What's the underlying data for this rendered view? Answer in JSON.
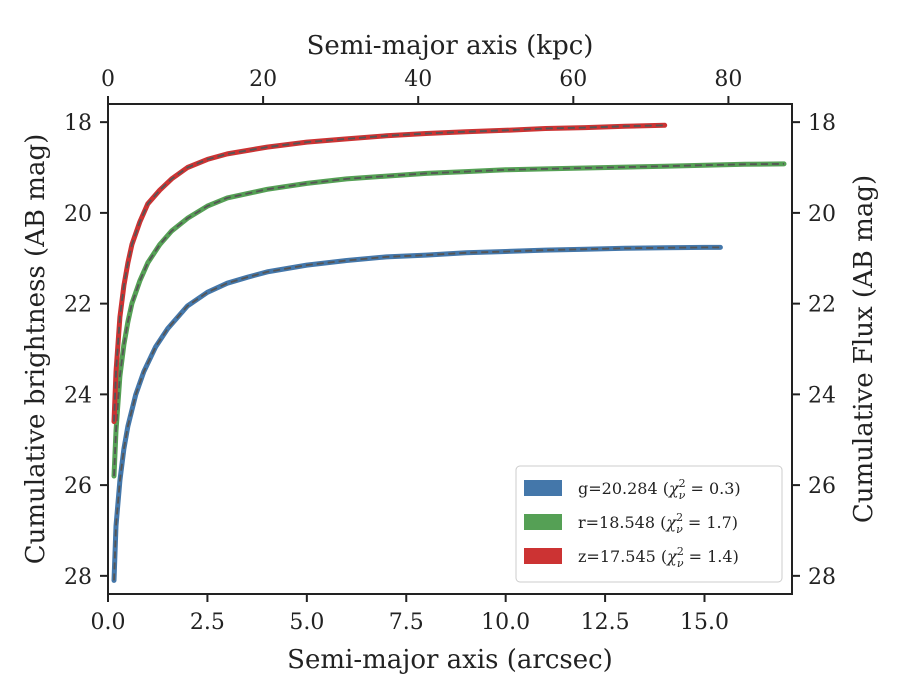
{
  "chart_data": {
    "type": "line",
    "xlabel": "Semi-major axis (arcsec)",
    "x2label": "Semi-major axis (kpc)",
    "ylabel": "Cumulative brightness (AB mag)",
    "y2label": "Cumulative Flux (AB mag)",
    "xlim": [
      0,
      17.2
    ],
    "x2lim": [
      0,
      88.2
    ],
    "ylim": [
      28.4,
      17.6
    ],
    "y_inverted": true,
    "x_ticks": [
      0.0,
      2.5,
      5.0,
      7.5,
      10.0,
      12.5,
      15.0
    ],
    "x_tick_labels": [
      "0.0",
      "2.5",
      "5.0",
      "7.5",
      "10.0",
      "12.5",
      "15.0"
    ],
    "x2_ticks": [
      0,
      20,
      40,
      60,
      80
    ],
    "x2_tick_labels": [
      "0",
      "20",
      "40",
      "60",
      "80"
    ],
    "y_ticks": [
      18,
      20,
      22,
      24,
      26,
      28
    ],
    "y_tick_labels": [
      "18",
      "20",
      "22",
      "24",
      "26",
      "28"
    ],
    "legend_position": "lower-right",
    "grid": false,
    "series": [
      {
        "name": "g=20.284 (χ²ν = 0.3)",
        "label_main": "g=20.284 (",
        "label_sym": "χ",
        "label_sup": "2",
        "label_sub": "ν",
        "label_tail": " = 0.3)",
        "color": "#4477aa",
        "x": [
          0.15,
          0.2,
          0.3,
          0.4,
          0.5,
          0.7,
          0.9,
          1.2,
          1.5,
          2.0,
          2.5,
          3.0,
          3.5,
          4.0,
          5.0,
          6.0,
          7.0,
          8.0,
          9.0,
          10.0,
          11.0,
          12.0,
          13.0,
          14.0,
          15.0,
          15.4
        ],
        "values": [
          28.1,
          26.9,
          25.9,
          25.2,
          24.7,
          24.0,
          23.5,
          22.95,
          22.55,
          22.05,
          21.75,
          21.55,
          21.42,
          21.3,
          21.15,
          21.05,
          20.97,
          20.93,
          20.88,
          20.85,
          20.82,
          20.8,
          20.78,
          20.77,
          20.76,
          20.76
        ]
      },
      {
        "name": "r=18.548 (χ²ν = 1.7)",
        "label_main": "r=18.548 (",
        "label_sym": "χ",
        "label_sup": "2",
        "label_sub": "ν",
        "label_tail": " = 1.7)",
        "color": "#55a055",
        "x": [
          0.15,
          0.2,
          0.3,
          0.4,
          0.5,
          0.6,
          0.8,
          1.0,
          1.3,
          1.6,
          2.0,
          2.5,
          3.0,
          4.0,
          5.0,
          6.0,
          7.0,
          8.0,
          9.0,
          10.0,
          11.0,
          12.0,
          13.0,
          14.0,
          15.0,
          16.0,
          17.0
        ],
        "values": [
          25.8,
          24.8,
          23.6,
          22.9,
          22.4,
          22.0,
          21.5,
          21.1,
          20.7,
          20.4,
          20.12,
          19.85,
          19.67,
          19.48,
          19.35,
          19.25,
          19.19,
          19.13,
          19.09,
          19.05,
          19.03,
          19.01,
          18.99,
          18.97,
          18.95,
          18.93,
          18.92
        ]
      },
      {
        "name": "z=17.545 (χ²ν = 1.4)",
        "label_main": "z=17.545 (",
        "label_sym": "χ",
        "label_sup": "2",
        "label_sub": "ν",
        "label_tail": " = 1.4)",
        "color": "#cc3333",
        "x": [
          0.15,
          0.2,
          0.3,
          0.4,
          0.5,
          0.6,
          0.8,
          1.0,
          1.3,
          1.6,
          2.0,
          2.5,
          3.0,
          4.0,
          5.0,
          6.0,
          7.0,
          8.0,
          9.0,
          10.0,
          11.0,
          12.0,
          13.0,
          14.0
        ],
        "values": [
          24.6,
          23.5,
          22.3,
          21.6,
          21.1,
          20.7,
          20.2,
          19.8,
          19.5,
          19.25,
          19.0,
          18.82,
          18.7,
          18.55,
          18.44,
          18.37,
          18.3,
          18.25,
          18.21,
          18.18,
          18.14,
          18.12,
          18.09,
          18.07
        ]
      }
    ],
    "model_line_style": "dashed",
    "model_line_color": "#555555"
  }
}
